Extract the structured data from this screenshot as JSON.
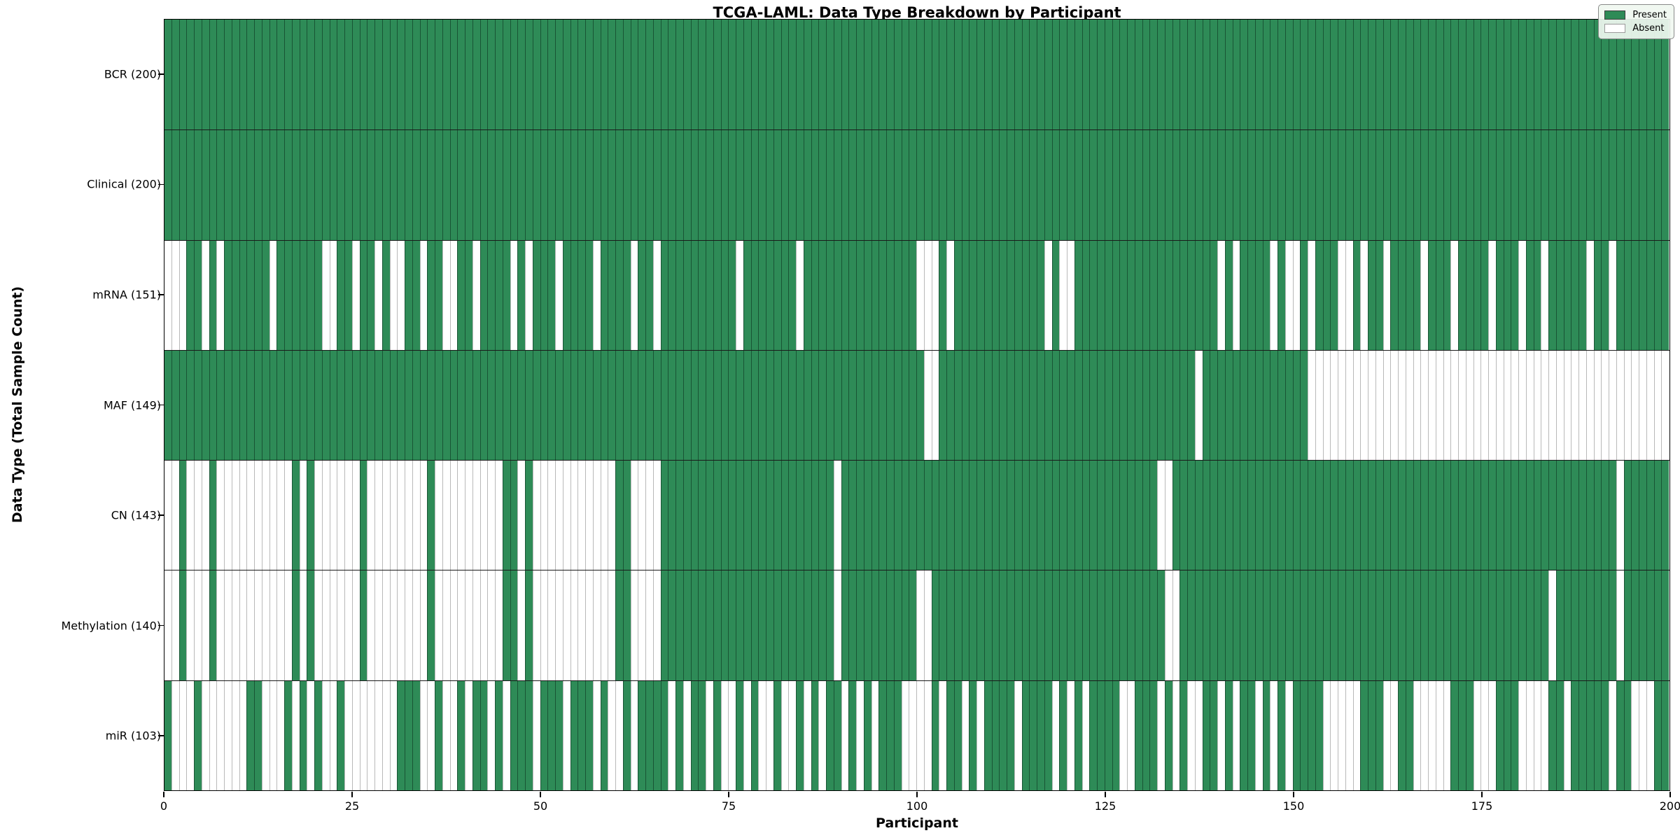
{
  "title": "TCGA-LAML: Data Type Breakdown by Participant",
  "xaxis": {
    "label": "Participant",
    "ticks": [
      0,
      25,
      50,
      75,
      100,
      125,
      150,
      175,
      200
    ]
  },
  "yaxis": {
    "label": "Data Type (Total Sample Count)"
  },
  "legend": {
    "present_label": "Present",
    "absent_label": "Absent",
    "position": "upper right"
  },
  "colors": {
    "present": "#2e8b57",
    "absent": "#ffffff",
    "cell_edge_present": "rgba(10,40,25,0.55)",
    "cell_edge_absent": "#b9b9b9",
    "row_separator": "#1a1a1a",
    "plot_border": "#000000"
  },
  "chart_data": {
    "type": "heatmap",
    "x_label": "Participant",
    "y_label": "Data Type (Total Sample Count)",
    "x_range": [
      0,
      200
    ],
    "n_participants": 200,
    "grid": false,
    "legend_position": "upper right",
    "value_encoding": {
      "1": "Present",
      "0": "Absent"
    },
    "rows": [
      {
        "label": "BCR (200)",
        "data_type": "BCR",
        "present_count": 200,
        "cells": "11111111111111111111111111111111111111111111111111111111111111111111111111111111111111111111111111111111111111111111111111111111111111111111111111111111111111111111111111111111111111111111111111111111"
      },
      {
        "label": "Clinical (200)",
        "data_type": "Clinical",
        "present_count": 200,
        "cells": "11111111111111111111111111111111111111111111111111111111111111111111111111111111111111111111111111111111111111111111111111111111111111111111111111111111111111111111111111111111111111111111111111111111"
      },
      {
        "label": "mRNA (151)",
        "data_type": "mRNA",
        "present_count": 151,
        "cells": "00011010111111011111100110110100110110011011110101110111101111011011111111110111111101111111111111110001011111111111101001111111111111111111010111101001011100101101111011101111011101101111101101111111"
      },
      {
        "label": "MAF (149)",
        "data_type": "MAF",
        "present_count": 149,
        "cells": "11111111111111111111111111111111111111111111111111111111111111111111111111111111111111111111111111111001111111111111111111111111111111111011111111111111000000000000000000000000000000000000000000000000"
      },
      {
        "label": "CN (143)",
        "data_type": "CN",
        "present_count": 143,
        "cells": "00100010000000000101000000100000000100000000011010000000000011000011111111111111111111111011111111111111111111111111111111111111111100111111111111111111111111111111111111111111111111111111111110111111"
      },
      {
        "label": "Methylation (140)",
        "data_type": "Methylation",
        "present_count": 140,
        "cells": "00100010000000000101000000100000000100000000011010000000000011000011111111111111111111111011111111110011111111111111111111111111111110011111111111111111111111111111111111111111111111110111111110111111"
      },
      {
        "label": "miR (103)",
        "data_type": "miR",
        "present_count": 103,
        "cells": "10001000000110001010100100000001110010010110101110111011101001011110101101001010010010101101010111000010110101111011110101011110011101010011010110101011110000011100110000011100011100001101111101100011"
      }
    ]
  }
}
